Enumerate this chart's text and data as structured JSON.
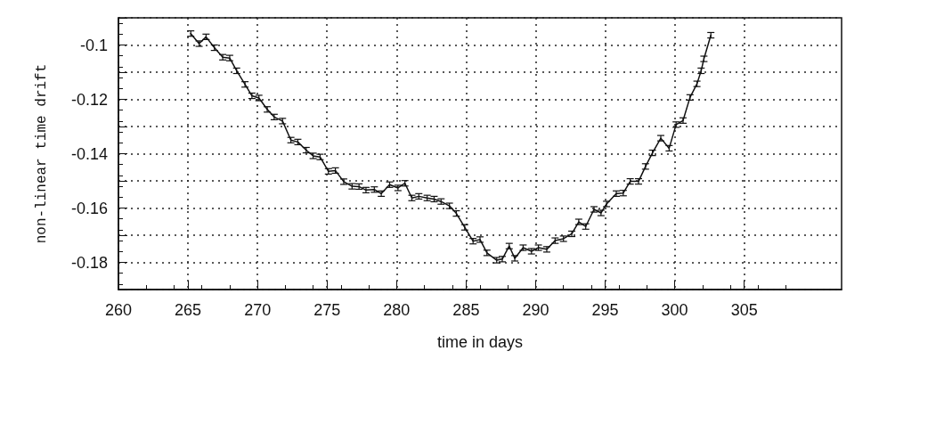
{
  "chart_data": {
    "type": "line",
    "xlabel": "time in days",
    "ylabel": "non-linear time drift",
    "xlim": [
      260,
      312
    ],
    "xticks": [
      260,
      265,
      270,
      275,
      280,
      285,
      290,
      295,
      300,
      305
    ],
    "ylim": [
      -0.19,
      -0.09
    ],
    "yticks": [
      {
        "value": -0.19,
        "label": null
      },
      -0.18,
      {
        "value": -0.17,
        "label": null
      },
      -0.16,
      {
        "value": -0.15,
        "label": null
      },
      -0.14,
      {
        "value": -0.13,
        "label": null
      },
      -0.12,
      {
        "value": -0.11,
        "label": null
      },
      -0.1,
      {
        "value": -0.09,
        "label": null
      }
    ],
    "grid": true,
    "marker": "none",
    "line_style": "solid",
    "series": [
      {
        "color": "#111111",
        "x": [
          265.2,
          265.8,
          266.3,
          266.9,
          267.5,
          268.0,
          268.5,
          269.1,
          269.6,
          270.1,
          270.7,
          271.2,
          271.8,
          272.4,
          272.9,
          273.5,
          274.0,
          274.5,
          275.1,
          275.6,
          276.2,
          276.8,
          277.3,
          277.8,
          278.4,
          278.9,
          279.5,
          280.1,
          280.6,
          281.1,
          281.6,
          282.2,
          282.7,
          283.2,
          283.8,
          284.3,
          284.9,
          285.5,
          286.0,
          286.5,
          287.2,
          287.6,
          288.1,
          288.5,
          289.1,
          289.7,
          290.2,
          290.8,
          291.4,
          292.0,
          292.6,
          293.1,
          293.6,
          294.2,
          294.7,
          295.1,
          295.8,
          296.3,
          296.8,
          297.4,
          297.9,
          298.4,
          299.0,
          299.6,
          300.1,
          300.6,
          301.1,
          301.6,
          301.9,
          302.1,
          302.6
        ],
        "values": [
          -0.0958,
          -0.0995,
          -0.097,
          -0.101,
          -0.1045,
          -0.1048,
          -0.1095,
          -0.1145,
          -0.1187,
          -0.1195,
          -0.1237,
          -0.1265,
          -0.128,
          -0.135,
          -0.1357,
          -0.1387,
          -0.1408,
          -0.1412,
          -0.1465,
          -0.1462,
          -0.1503,
          -0.152,
          -0.1521,
          -0.1534,
          -0.1532,
          -0.1547,
          -0.1514,
          -0.1526,
          -0.1509,
          -0.1563,
          -0.1557,
          -0.1563,
          -0.1567,
          -0.1576,
          -0.1592,
          -0.162,
          -0.1671,
          -0.1722,
          -0.1716,
          -0.1765,
          -0.1792,
          -0.1788,
          -0.174,
          -0.1785,
          -0.1746,
          -0.1759,
          -0.1746,
          -0.1752,
          -0.172,
          -0.1713,
          -0.1695,
          -0.1651,
          -0.1668,
          -0.1605,
          -0.1618,
          -0.1585,
          -0.1547,
          -0.1545,
          -0.1502,
          -0.1502,
          -0.1447,
          -0.1397,
          -0.1343,
          -0.138,
          -0.1293,
          -0.1278,
          -0.1193,
          -0.1143,
          -0.1095,
          -0.1051,
          -0.0964
        ],
        "errors": [
          0.001,
          0.001,
          0.001,
          0.001,
          0.001,
          0.001,
          0.001,
          0.001,
          0.001,
          0.001,
          0.001,
          0.001,
          0.001,
          0.001,
          0.001,
          0.001,
          0.001,
          0.001,
          0.001,
          0.001,
          0.001,
          0.001,
          0.001,
          0.001,
          0.001,
          0.001,
          0.001,
          0.001,
          0.001,
          0.001,
          0.001,
          0.001,
          0.001,
          0.001,
          0.001,
          0.001,
          0.001,
          0.001,
          0.001,
          0.001,
          0.001,
          0.001,
          0.001,
          0.001,
          0.001,
          0.001,
          0.001,
          0.001,
          0.001,
          0.001,
          0.001,
          0.001,
          0.001,
          0.001,
          0.001,
          0.001,
          0.001,
          0.001,
          0.001,
          0.001,
          0.001,
          0.001,
          0.001,
          0.001,
          0.001,
          0.001,
          0.001,
          0.001,
          0.001,
          0.001,
          0.001
        ]
      }
    ]
  }
}
